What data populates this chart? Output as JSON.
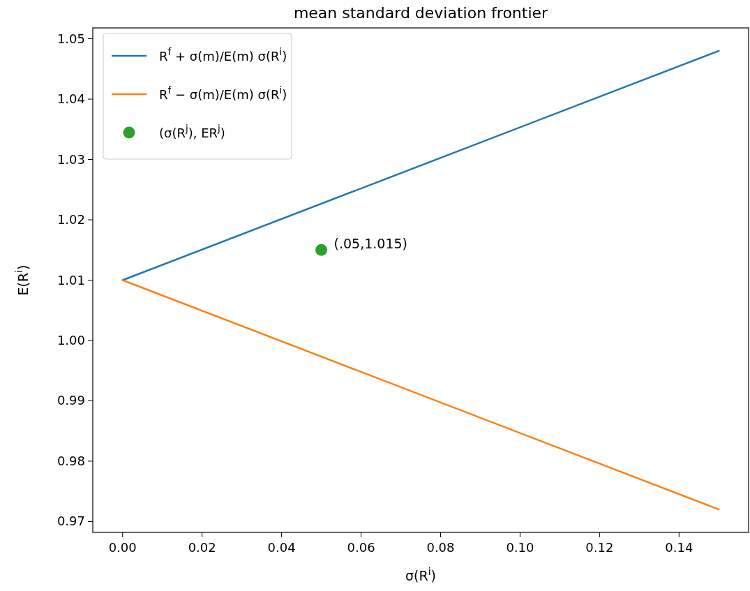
{
  "chart_data": {
    "type": "line",
    "title": "mean standard deviation frontier",
    "xlabel": "σ(R$^{i}$)",
    "ylabel": "E(R$^{i}$)",
    "xlim": [
      -0.0075,
      0.1575
    ],
    "ylim": [
      0.9682,
      1.0518
    ],
    "xticks": [
      {
        "value": 0,
        "label": "0.00"
      },
      0.02,
      0.04,
      0.06,
      0.08,
      {
        "value": 0.1,
        "label": "0.10"
      },
      0.12,
      0.14
    ],
    "yticks": [
      0.97,
      0.98,
      0.99,
      {
        "value": 1,
        "label": "1.00"
      },
      1.01,
      1.02,
      1.03,
      1.04,
      1.05
    ],
    "series": [
      {
        "name": "R$^{f}$ + σ(m)/E(m) σ(R$^{i}$)",
        "color": "#1f77b4",
        "x": [
          0,
          0.15
        ],
        "values": [
          1.01,
          1.048
        ]
      },
      {
        "name": "R$^{f}$ − σ(m)/E(m) σ(R$^{i}$)",
        "color": "#ff7f0e",
        "x": [
          0,
          0.15
        ],
        "values": [
          1.01,
          0.972
        ]
      },
      {
        "name": "(σ(R$^{j}$), ER$^{j}$)",
        "type": "scatter",
        "marker": "circle",
        "color": "#2ca02c",
        "x": [
          0.05
        ],
        "values": [
          1.015
        ]
      }
    ],
    "annotations": [
      {
        "text": "(.05,1.015)",
        "x": 0.05,
        "y": 1.015
      }
    ],
    "legend": "top left",
    "grid": false
  }
}
